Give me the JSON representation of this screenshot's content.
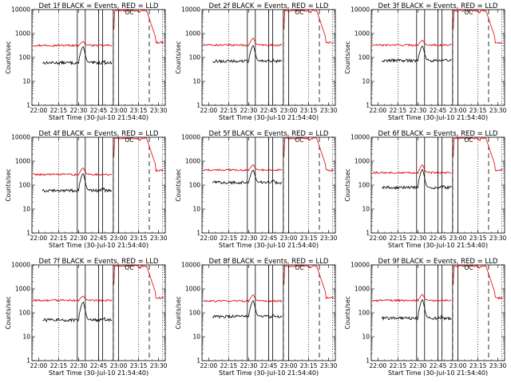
{
  "chart_data": {
    "type": "line",
    "layout": "3x3 grid",
    "common": {
      "xlabel": "Start Time (30-Jul-10 21:54:40)",
      "ylabel": "Counts/sec",
      "xlim": [
        0,
        100
      ],
      "x_ticks": [
        5,
        20,
        35,
        50,
        65,
        80,
        95
      ],
      "x_tick_labels": [
        "22:00",
        "22:15",
        "22:30",
        "22:45",
        "23:00",
        "23:15",
        "23:30"
      ],
      "y_scale": "log",
      "ylim": [
        1,
        10000
      ],
      "y_ticks": [
        1,
        10,
        100,
        1000,
        10000
      ],
      "y_tick_labels": [
        "1",
        "10",
        "100",
        "1000",
        "10000"
      ],
      "x_units": "minutes after 21:55",
      "vertical_markers": {
        "dotted": [
          20,
          80,
          98
        ],
        "solid": [
          34,
          40,
          50,
          53,
          61,
          65
        ],
        "dashed": [
          61,
          88
        ]
      },
      "annotation": "OC",
      "colors": {
        "events": "#000000",
        "lld": "#e00000"
      }
    },
    "panels": [
      {
        "title": "Det 1f BLACK = Events, RED = LLD",
        "events_base": 60,
        "lld_base": 320,
        "peak_events": 280,
        "peak_lld": 460
      },
      {
        "title": "Det 2f BLACK = Events, RED = LLD",
        "events_base": 70,
        "lld_base": 330,
        "peak_events": 310,
        "peak_lld": 640
      },
      {
        "title": "Det 3f BLACK = Events, RED = LLD",
        "events_base": 75,
        "lld_base": 330,
        "peak_events": 300,
        "peak_lld": 520
      },
      {
        "title": "Det 4f BLACK = Events, RED = LLD",
        "events_base": 60,
        "lld_base": 280,
        "peak_events": 300,
        "peak_lld": 520
      },
      {
        "title": "Det 5f BLACK = Events, RED = LLD",
        "events_base": 130,
        "lld_base": 430,
        "peak_events": 420,
        "peak_lld": 700
      },
      {
        "title": "Det 6f BLACK = Events, RED = LLD",
        "events_base": 80,
        "lld_base": 330,
        "peak_events": 450,
        "peak_lld": 700
      },
      {
        "title": "Det 7f BLACK = Events, RED = LLD",
        "events_base": 50,
        "lld_base": 330,
        "peak_events": 280,
        "peak_lld": 500
      },
      {
        "title": "Det 8f BLACK = Events, RED = LLD",
        "events_base": 70,
        "lld_base": 310,
        "peak_events": 320,
        "peak_lld": 560
      },
      {
        "title": "Det 9f BLACK = Events, RED = LLD",
        "events_base": 60,
        "lld_base": 330,
        "peak_events": 350,
        "peak_lld": 580
      }
    ]
  }
}
